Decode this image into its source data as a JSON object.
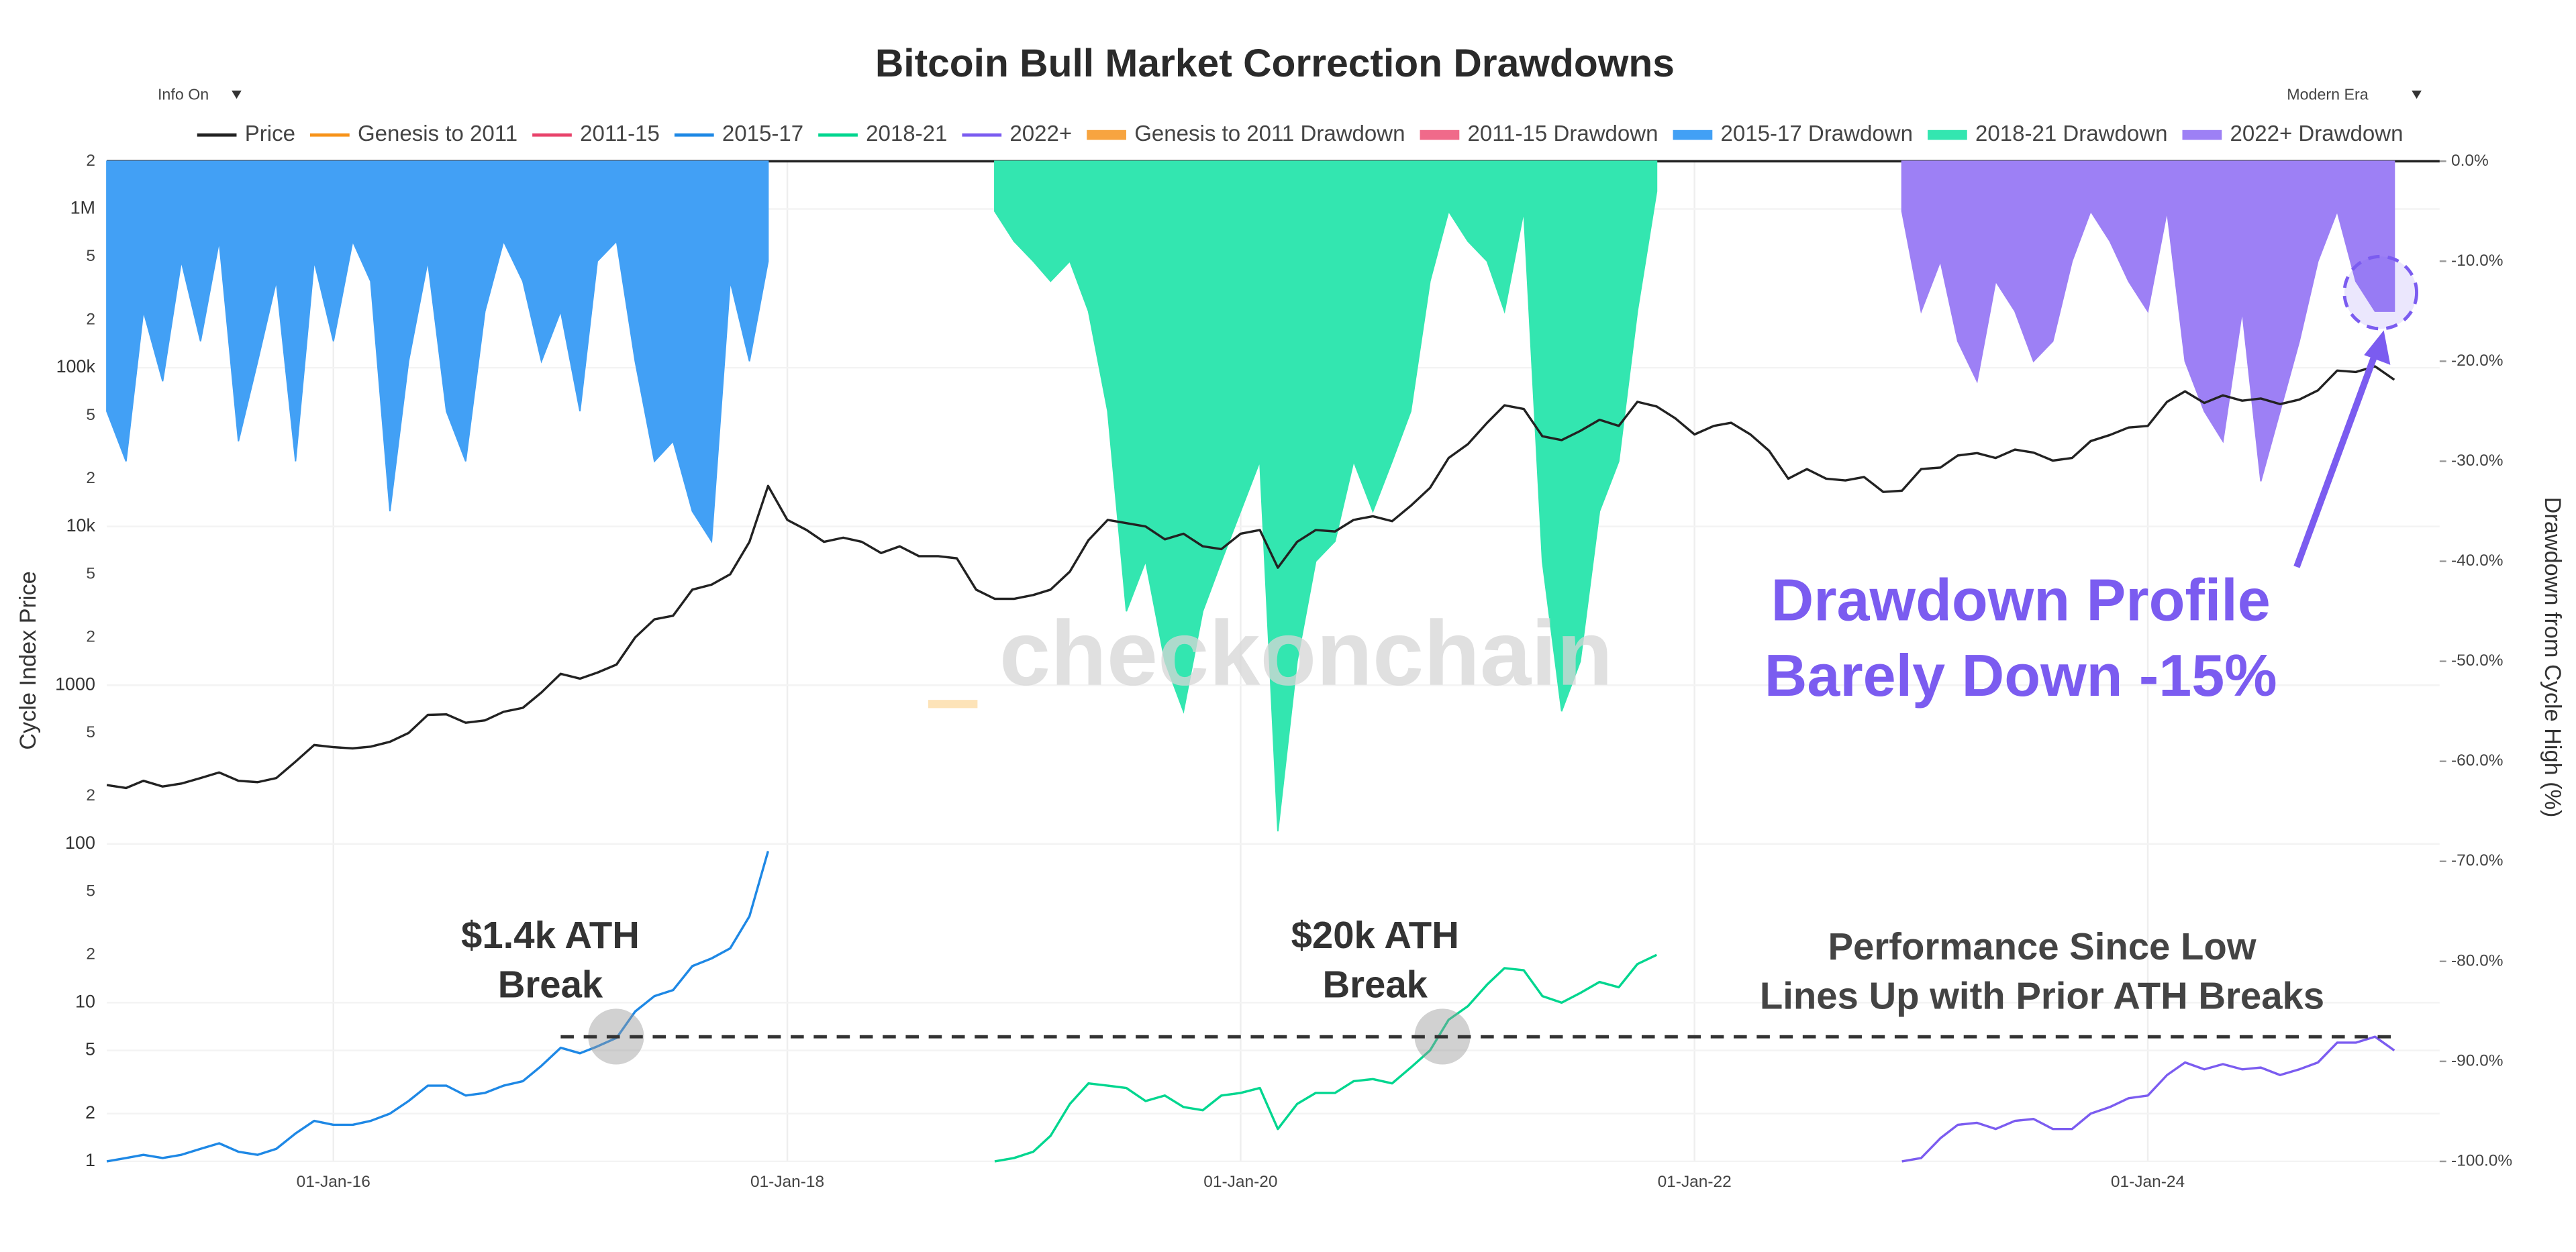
{
  "controls": {
    "left": "Info On",
    "right": "Modern Era"
  },
  "chart_data": {
    "type": "line",
    "title": "Bitcoin Bull Market Correction Drawdowns",
    "y_label": "Cycle Index Price",
    "y2_label": "Drawdown from Cycle High (%)",
    "watermark": "checkonchain",
    "xlim": [
      "2015-01-01",
      "2025-04-15"
    ],
    "xticks": [
      {
        "value": "2016-01-01",
        "label": "01-Jan-16"
      },
      {
        "value": "2018-01-01",
        "label": "01-Jan-18"
      },
      {
        "value": "2020-01-01",
        "label": "01-Jan-20"
      },
      {
        "value": "2022-01-01",
        "label": "01-Jan-22"
      },
      {
        "value": "2024-01-01",
        "label": "01-Jan-24"
      }
    ],
    "ylim": [
      1,
      2000000
    ],
    "log_y": true,
    "yticks": [
      1,
      2,
      5,
      10,
      {
        "value": 20,
        "label": "2"
      },
      {
        "value": 50,
        "label": "5"
      },
      100,
      {
        "value": 200,
        "label": "2"
      },
      {
        "value": 500,
        "label": "5"
      },
      1000,
      {
        "value": 2000,
        "label": "2"
      },
      {
        "value": 5000,
        "label": "5"
      },
      {
        "value": 10000,
        "label": "10k"
      },
      {
        "value": 20000,
        "label": "2"
      },
      {
        "value": 50000,
        "label": "5"
      },
      {
        "value": 100000,
        "label": "100k"
      },
      {
        "value": 200000,
        "label": "2"
      },
      {
        "value": 500000,
        "label": "5"
      },
      {
        "value": 1000000,
        "label": "1M"
      },
      {
        "value": 2000000,
        "label": "2"
      }
    ],
    "y2lim": [
      -100,
      0
    ],
    "y2ticks": [
      {
        "value": 0,
        "label": "0.0%"
      },
      {
        "value": -10,
        "label": "-10.0%"
      },
      {
        "value": -20,
        "label": "-20.0%"
      },
      {
        "value": -30,
        "label": "-30.0%"
      },
      {
        "value": -40,
        "label": "-40.0%"
      },
      {
        "value": -50,
        "label": "-50.0%"
      },
      {
        "value": -60,
        "label": "-60.0%"
      },
      {
        "value": -70,
        "label": "-70.0%"
      },
      {
        "value": -80,
        "label": "-80.0%"
      },
      {
        "value": -90,
        "label": "-90.0%"
      },
      {
        "value": -100,
        "label": "-100.0%"
      }
    ],
    "grid": true,
    "legend": "top",
    "reference_line": {
      "value": 6.1,
      "x": [
        "2017-01-01",
        "2025-02-01"
      ]
    },
    "annotations": [
      {
        "lines": [
          "$1.4k ATH",
          "Break"
        ],
        "color": "#333333"
      },
      {
        "lines": [
          "$20k ATH",
          "Break"
        ],
        "color": "#333333"
      },
      {
        "lines": [
          "Performance Since Low",
          "Lines Up with Prior ATH Breaks"
        ],
        "color": "#444444"
      },
      {
        "lines": [
          "Drawdown Profile",
          "Barely Down -15%"
        ],
        "color": "#7b5cf0"
      }
    ],
    "series": [
      {
        "name": "Price",
        "color": "#222222",
        "style": "line",
        "x": [
          "2015-01-01",
          "2015-02-01",
          "2015-03-01",
          "2015-04-01",
          "2015-05-01",
          "2015-06-01",
          "2015-07-01",
          "2015-08-01",
          "2015-09-01",
          "2015-10-01",
          "2015-11-01",
          "2015-12-01",
          "2016-01-01",
          "2016-02-01",
          "2016-03-01",
          "2016-04-01",
          "2016-05-01",
          "2016-06-01",
          "2016-07-01",
          "2016-08-01",
          "2016-09-01",
          "2016-10-01",
          "2016-11-01",
          "2016-12-01",
          "2017-01-01",
          "2017-02-01",
          "2017-03-01",
          "2017-04-01",
          "2017-05-01",
          "2017-06-01",
          "2017-07-01",
          "2017-08-01",
          "2017-09-01",
          "2017-10-01",
          "2017-11-01",
          "2017-12-01",
          "2018-01-01",
          "2018-02-01",
          "2018-03-01",
          "2018-04-01",
          "2018-05-01",
          "2018-06-01",
          "2018-07-01",
          "2018-08-01",
          "2018-09-01",
          "2018-10-01",
          "2018-11-01",
          "2018-12-01",
          "2019-01-01",
          "2019-02-01",
          "2019-03-01",
          "2019-04-01",
          "2019-05-01",
          "2019-06-01",
          "2019-07-01",
          "2019-08-01",
          "2019-09-01",
          "2019-10-01",
          "2019-11-01",
          "2019-12-01",
          "2020-01-01",
          "2020-02-01",
          "2020-03-01",
          "2020-04-01",
          "2020-05-01",
          "2020-06-01",
          "2020-07-01",
          "2020-08-01",
          "2020-09-01",
          "2020-10-01",
          "2020-11-01",
          "2020-12-01",
          "2021-01-01",
          "2021-02-01",
          "2021-03-01",
          "2021-04-01",
          "2021-05-01",
          "2021-06-01",
          "2021-07-01",
          "2021-08-01",
          "2021-09-01",
          "2021-10-01",
          "2021-11-01",
          "2021-12-01",
          "2022-01-01",
          "2022-02-01",
          "2022-03-01",
          "2022-04-01",
          "2022-05-01",
          "2022-06-01",
          "2022-07-01",
          "2022-08-01",
          "2022-09-01",
          "2022-10-01",
          "2022-11-01",
          "2022-12-01",
          "2023-01-01",
          "2023-02-01",
          "2023-03-01",
          "2023-04-01",
          "2023-05-01",
          "2023-06-01",
          "2023-07-01",
          "2023-08-01",
          "2023-09-01",
          "2023-10-01",
          "2023-11-01",
          "2023-12-01",
          "2024-01-01",
          "2024-02-01",
          "2024-03-01",
          "2024-04-01",
          "2024-05-01",
          "2024-06-01",
          "2024-07-01",
          "2024-08-01",
          "2024-09-01",
          "2024-10-01",
          "2024-11-01",
          "2024-12-01",
          "2025-01-01",
          "2025-02-01"
        ],
        "values": [
          235,
          225,
          250,
          230,
          240,
          260,
          282,
          250,
          245,
          260,
          330,
          420,
          407,
          400,
          410,
          440,
          500,
          650,
          655,
          580,
          600,
          680,
          720,
          900,
          1180,
          1100,
          1200,
          1350,
          2000,
          2600,
          2740,
          4000,
          4300,
          5000,
          8000,
          18000,
          11000,
          9500,
          8000,
          8500,
          8000,
          6800,
          7500,
          6500,
          6500,
          6300,
          4000,
          3500,
          3500,
          3700,
          4000,
          5200,
          8200,
          11000,
          10500,
          10000,
          8300,
          9000,
          7500,
          7200,
          9000,
          9500,
          5500,
          8000,
          9500,
          9300,
          11000,
          11600,
          10800,
          13500,
          17500,
          27000,
          33000,
          45000,
          58000,
          55000,
          37000,
          35000,
          40000,
          47000,
          43000,
          61000,
          57000,
          48000,
          38000,
          43000,
          45000,
          38000,
          30000,
          20000,
          23000,
          20000,
          19500,
          20500,
          16500,
          16800,
          23000,
          23500,
          28000,
          29000,
          27000,
          30500,
          29200,
          26000,
          27000,
          34500,
          37700,
          42000,
          43000,
          61000,
          71000,
          60000,
          67000,
          62000,
          64000,
          59000,
          63000,
          72000,
          96000,
          94000,
          102000,
          84000
        ]
      },
      {
        "name": "Genesis to 2011",
        "color": "#f7931a",
        "style": "line",
        "x": [],
        "values": []
      },
      {
        "name": "2011-15",
        "color": "#e8436b",
        "style": "line",
        "x": [],
        "values": []
      },
      {
        "name": "2015-17",
        "color": "#1e88e5",
        "style": "line",
        "x": [
          "2015-01-01",
          "2015-02-01",
          "2015-03-01",
          "2015-04-01",
          "2015-05-01",
          "2015-06-01",
          "2015-07-01",
          "2015-08-01",
          "2015-09-01",
          "2015-10-01",
          "2015-11-01",
          "2015-12-01",
          "2016-01-01",
          "2016-02-01",
          "2016-03-01",
          "2016-04-01",
          "2016-05-01",
          "2016-06-01",
          "2016-07-01",
          "2016-08-01",
          "2016-09-01",
          "2016-10-01",
          "2016-11-01",
          "2016-12-01",
          "2017-01-01",
          "2017-02-01",
          "2017-03-01",
          "2017-04-01",
          "2017-05-01",
          "2017-06-01",
          "2017-07-01",
          "2017-08-01",
          "2017-09-01",
          "2017-10-01",
          "2017-11-01",
          "2017-12-01"
        ],
        "values": [
          1,
          1.05,
          1.1,
          1.05,
          1.1,
          1.2,
          1.3,
          1.15,
          1.1,
          1.2,
          1.5,
          1.8,
          1.7,
          1.7,
          1.8,
          2.0,
          2.4,
          3.0,
          3.0,
          2.6,
          2.7,
          3.0,
          3.2,
          4.0,
          5.2,
          4.8,
          5.3,
          6.0,
          8.8,
          11,
          12,
          17,
          19,
          22,
          35,
          90
        ]
      },
      {
        "name": "2018-21",
        "color": "#00d68f",
        "style": "line",
        "x": [
          "2018-12-01",
          "2019-01-01",
          "2019-02-01",
          "2019-03-01",
          "2019-04-01",
          "2019-05-01",
          "2019-06-01",
          "2019-07-01",
          "2019-08-01",
          "2019-09-01",
          "2019-10-01",
          "2019-11-01",
          "2019-12-01",
          "2020-01-01",
          "2020-02-01",
          "2020-03-01",
          "2020-04-01",
          "2020-05-01",
          "2020-06-01",
          "2020-07-01",
          "2020-08-01",
          "2020-09-01",
          "2020-10-01",
          "2020-11-01",
          "2020-12-01",
          "2021-01-01",
          "2021-02-01",
          "2021-03-01",
          "2021-04-01",
          "2021-05-01",
          "2021-06-01",
          "2021-07-01",
          "2021-08-01",
          "2021-09-01",
          "2021-10-01",
          "2021-11-01"
        ],
        "values": [
          1,
          1.05,
          1.15,
          1.45,
          2.3,
          3.1,
          3.0,
          2.9,
          2.4,
          2.6,
          2.2,
          2.1,
          2.6,
          2.7,
          2.9,
          1.6,
          2.3,
          2.7,
          2.7,
          3.2,
          3.3,
          3.1,
          3.9,
          5.0,
          7.8,
          9.5,
          13,
          16.5,
          16,
          11,
          10,
          11.5,
          13.5,
          12.5,
          17.5,
          20
        ]
      },
      {
        "name": "2022+",
        "color": "#7b5cf0",
        "style": "line",
        "x": [
          "2022-12-01",
          "2023-01-01",
          "2023-02-01",
          "2023-03-01",
          "2023-04-01",
          "2023-05-01",
          "2023-06-01",
          "2023-07-01",
          "2023-08-01",
          "2023-09-01",
          "2023-10-01",
          "2023-11-01",
          "2023-12-01",
          "2024-01-01",
          "2024-02-01",
          "2024-03-01",
          "2024-04-01",
          "2024-05-01",
          "2024-06-01",
          "2024-07-01",
          "2024-08-01",
          "2024-09-01",
          "2024-10-01",
          "2024-11-01",
          "2024-12-01",
          "2025-01-01",
          "2025-02-01"
        ],
        "values": [
          1,
          1.05,
          1.4,
          1.7,
          1.75,
          1.6,
          1.8,
          1.85,
          1.6,
          1.6,
          2.0,
          2.2,
          2.5,
          2.6,
          3.5,
          4.2,
          3.8,
          4.1,
          3.8,
          3.9,
          3.5,
          3.8,
          4.2,
          5.6,
          5.6,
          6.1,
          5.0
        ]
      },
      {
        "name": "Genesis to 2011 Drawdown",
        "color": "#f7a440",
        "style": "area",
        "axis": "y2",
        "x": [],
        "values": []
      },
      {
        "name": "2011-15 Drawdown",
        "color": "#f06a8a",
        "style": "area",
        "axis": "y2",
        "x": [],
        "values": []
      },
      {
        "name": "2015-17 Drawdown",
        "color": "#42a0f5",
        "style": "area",
        "axis": "y2",
        "x": [
          "2015-01-01",
          "2015-02-01",
          "2015-03-01",
          "2015-04-01",
          "2015-05-01",
          "2015-06-01",
          "2015-07-01",
          "2015-08-01",
          "2015-09-01",
          "2015-10-01",
          "2015-11-01",
          "2015-12-01",
          "2016-01-01",
          "2016-02-01",
          "2016-03-01",
          "2016-04-01",
          "2016-05-01",
          "2016-06-01",
          "2016-07-01",
          "2016-08-01",
          "2016-09-01",
          "2016-10-01",
          "2016-11-01",
          "2016-12-01",
          "2017-01-01",
          "2017-02-01",
          "2017-03-01",
          "2017-04-01",
          "2017-05-01",
          "2017-06-01",
          "2017-07-01",
          "2017-08-01",
          "2017-09-01",
          "2017-10-01",
          "2017-11-01",
          "2017-12-01"
        ],
        "values": [
          -25,
          -30,
          -15,
          -22,
          -10,
          -18,
          -8,
          -28,
          -20,
          -12,
          -30,
          -10,
          -18,
          -8,
          -12,
          -35,
          -20,
          -10,
          -25,
          -30,
          -15,
          -8,
          -12,
          -20,
          -15,
          -25,
          -10,
          -8,
          -20,
          -30,
          -28,
          -35,
          -38,
          -12,
          -20,
          -10
        ]
      },
      {
        "name": "2018-21 Drawdown",
        "color": "#33e6b0",
        "style": "area",
        "axis": "y2",
        "x": [
          "2018-12-01",
          "2019-01-01",
          "2019-02-01",
          "2019-03-01",
          "2019-04-01",
          "2019-05-01",
          "2019-06-01",
          "2019-07-01",
          "2019-08-01",
          "2019-09-01",
          "2019-10-01",
          "2019-11-01",
          "2019-12-01",
          "2020-01-01",
          "2020-02-01",
          "2020-03-01",
          "2020-04-01",
          "2020-05-01",
          "2020-06-01",
          "2020-07-01",
          "2020-08-01",
          "2020-09-01",
          "2020-10-01",
          "2020-11-01",
          "2020-12-01",
          "2021-01-01",
          "2021-02-01",
          "2021-03-01",
          "2021-04-01",
          "2021-05-01",
          "2021-06-01",
          "2021-07-01",
          "2021-08-01",
          "2021-09-01",
          "2021-10-01",
          "2021-11-01"
        ],
        "values": [
          -5,
          -8,
          -10,
          -12,
          -10,
          -15,
          -25,
          -45,
          -40,
          -50,
          -55,
          -45,
          -40,
          -35,
          -30,
          -67,
          -50,
          -40,
          -38,
          -30,
          -35,
          -30,
          -25,
          -12,
          -5,
          -8,
          -10,
          -15,
          -5,
          -40,
          -55,
          -50,
          -35,
          -30,
          -15,
          -3
        ]
      },
      {
        "name": "2022+ Drawdown",
        "color": "#9d80f5",
        "style": "area",
        "axis": "y2",
        "x": [
          "2022-12-01",
          "2023-01-01",
          "2023-02-01",
          "2023-03-01",
          "2023-04-01",
          "2023-05-01",
          "2023-06-01",
          "2023-07-01",
          "2023-08-01",
          "2023-09-01",
          "2023-10-01",
          "2023-11-01",
          "2023-12-01",
          "2024-01-01",
          "2024-02-01",
          "2024-03-01",
          "2024-04-01",
          "2024-05-01",
          "2024-06-01",
          "2024-07-01",
          "2024-08-01",
          "2024-09-01",
          "2024-10-01",
          "2024-11-01",
          "2024-12-01",
          "2025-01-01",
          "2025-02-01"
        ],
        "values": [
          -5,
          -15,
          -10,
          -18,
          -22,
          -12,
          -15,
          -20,
          -18,
          -10,
          -5,
          -8,
          -12,
          -15,
          -5,
          -20,
          -25,
          -28,
          -15,
          -32,
          -25,
          -18,
          -10,
          -5,
          -12,
          -15,
          -15
        ]
      }
    ]
  }
}
